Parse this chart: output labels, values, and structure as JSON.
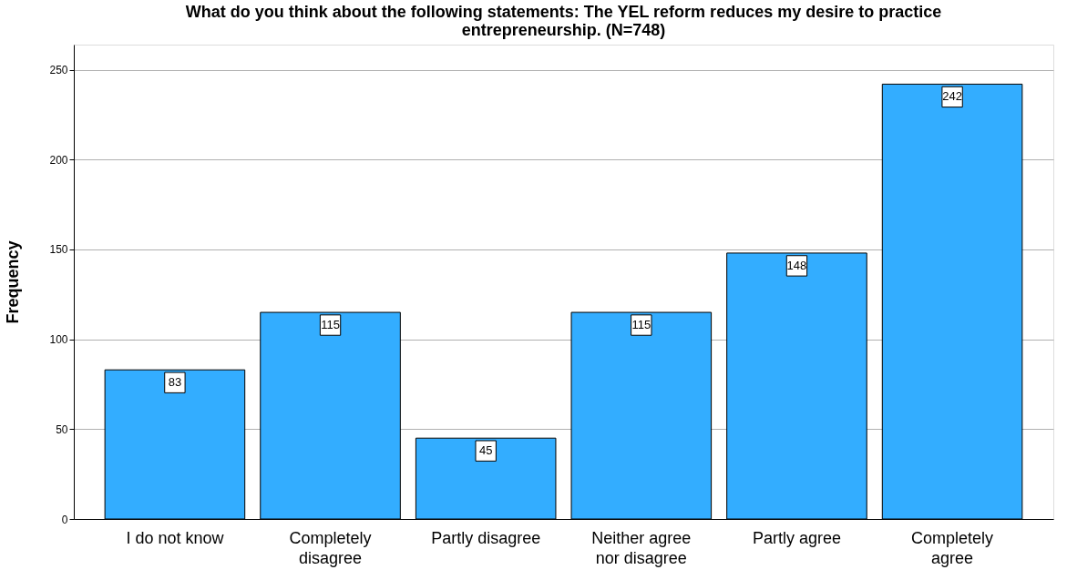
{
  "chart_data": {
    "type": "bar",
    "title": "What do you think about the following statements: The YEL reform reduces my desire to practice\nentrepreneurship. (N=748)",
    "ylabel": "Frequency",
    "categories": [
      "I do not know",
      "Completely\ndisagree",
      "Partly disagree",
      "Neither agree\nnor disagree",
      "Partly agree",
      "Completely\nagree"
    ],
    "values": [
      83,
      115,
      45,
      115,
      148,
      242
    ],
    "color": "#33adff",
    "ylim": [
      0,
      264
    ],
    "yticks": [
      0,
      50,
      100,
      150,
      200,
      250
    ],
    "grid": "y",
    "data_labels": true
  }
}
